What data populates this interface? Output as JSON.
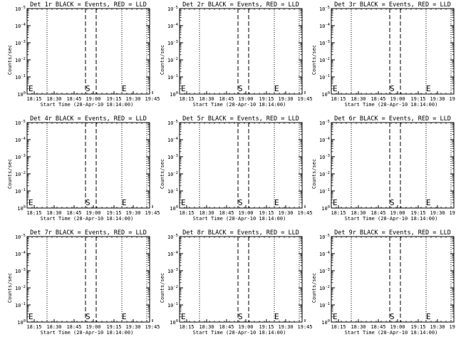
{
  "figure": {
    "background": "#ffffff",
    "foreground": "#000000"
  },
  "chart_data": [
    {
      "type": "line",
      "title": "Det 1r BLACK = Events, RED = LLD",
      "xlabel": "Start Time (28-Apr-10 18:14:00)",
      "ylabel": "Counts/sec",
      "x_ticks": [
        "18:15",
        "18:30",
        "18:45",
        "19:00",
        "19:15",
        "19:30",
        "19:45"
      ],
      "y_ticks": [
        "10^0",
        "10^-1",
        "10^-2",
        "10^-3",
        "10^-4",
        "10^-5"
      ],
      "series": [],
      "markers": [
        "E",
        "S",
        "E"
      ],
      "dashed_lines": 2,
      "dotted_lines": 2,
      "series_colors": {
        "events": "#000000",
        "lld": "#ff0000"
      }
    },
    {
      "type": "line",
      "title": "Det 2r BLACK = Events, RED = LLD",
      "xlabel": "Start Time (28-Apr-10 18:14:00)",
      "ylabel": "Counts/sec",
      "x_ticks": [
        "18:15",
        "18:30",
        "18:45",
        "19:00",
        "19:15",
        "19:30",
        "19:45"
      ],
      "y_ticks": [
        "10^0",
        "10^-1",
        "10^-2",
        "10^-3",
        "10^-4",
        "10^-5"
      ],
      "series": [],
      "markers": [
        "E",
        "S",
        "E"
      ],
      "dashed_lines": 2,
      "dotted_lines": 2,
      "series_colors": {
        "events": "#000000",
        "lld": "#ff0000"
      }
    },
    {
      "type": "line",
      "title": "Det 3r BLACK = Events, RED = LLD",
      "xlabel": "Start Time (28-Apr-10 18:14:00)",
      "ylabel": "Counts/sec",
      "x_ticks": [
        "18:15",
        "18:30",
        "18:45",
        "19:00",
        "19:15",
        "19:30",
        "19:45"
      ],
      "y_ticks": [
        "10^0",
        "10^-1",
        "10^-2",
        "10^-3",
        "10^-4",
        "10^-5"
      ],
      "series": [],
      "markers": [
        "E",
        "S",
        "E"
      ],
      "dashed_lines": 2,
      "dotted_lines": 2,
      "series_colors": {
        "events": "#000000",
        "lld": "#ff0000"
      }
    },
    {
      "type": "line",
      "title": "Det 4r BLACK = Events, RED = LLD",
      "xlabel": "Start Time (28-Apr-10 18:14:00)",
      "ylabel": "Counts/sec",
      "x_ticks": [
        "18:15",
        "18:30",
        "18:45",
        "19:00",
        "19:15",
        "19:30",
        "19:45"
      ],
      "y_ticks": [
        "10^0",
        "10^-1",
        "10^-2",
        "10^-3",
        "10^-4",
        "10^-5"
      ],
      "series": [],
      "markers": [
        "E",
        "S",
        "E"
      ],
      "dashed_lines": 2,
      "dotted_lines": 2,
      "series_colors": {
        "events": "#000000",
        "lld": "#ff0000"
      }
    },
    {
      "type": "line",
      "title": "Det 5r BLACK = Events, RED = LLD",
      "xlabel": "Start Time (28-Apr-10 18:14:00)",
      "ylabel": "Counts/sec",
      "x_ticks": [
        "18:15",
        "18:30",
        "18:45",
        "19:00",
        "19:15",
        "19:30",
        "19:45"
      ],
      "y_ticks": [
        "10^0",
        "10^-1",
        "10^-2",
        "10^-3",
        "10^-4",
        "10^-5"
      ],
      "series": [],
      "markers": [
        "E",
        "S",
        "E"
      ],
      "dashed_lines": 2,
      "dotted_lines": 2,
      "series_colors": {
        "events": "#000000",
        "lld": "#ff0000"
      }
    },
    {
      "type": "line",
      "title": "Det 6r BLACK = Events, RED = LLD",
      "xlabel": "Start Time (28-Apr-10 18:14:00)",
      "ylabel": "Counts/sec",
      "x_ticks": [
        "18:15",
        "18:30",
        "18:45",
        "19:00",
        "19:15",
        "19:30",
        "19:45"
      ],
      "y_ticks": [
        "10^0",
        "10^-1",
        "10^-2",
        "10^-3",
        "10^-4",
        "10^-5"
      ],
      "series": [],
      "markers": [
        "E",
        "S",
        "E"
      ],
      "dashed_lines": 2,
      "dotted_lines": 2,
      "series_colors": {
        "events": "#000000",
        "lld": "#ff0000"
      }
    },
    {
      "type": "line",
      "title": "Det 7r BLACK = Events, RED = LLD",
      "xlabel": "Start Time (28-Apr-10 18:14:00)",
      "ylabel": "Counts/sec",
      "x_ticks": [
        "18:15",
        "18:30",
        "18:45",
        "19:00",
        "19:15",
        "19:30",
        "19:45"
      ],
      "y_ticks": [
        "10^0",
        "10^-1",
        "10^-2",
        "10^-3",
        "10^-4",
        "10^-5"
      ],
      "series": [],
      "markers": [
        "E",
        "S",
        "E"
      ],
      "dashed_lines": 2,
      "dotted_lines": 2,
      "series_colors": {
        "events": "#000000",
        "lld": "#ff0000"
      }
    },
    {
      "type": "line",
      "title": "Det 8r BLACK = Events, RED = LLD",
      "xlabel": "Start Time (28-Apr-10 18:14:00)",
      "ylabel": "Counts/sec",
      "x_ticks": [
        "18:15",
        "18:30",
        "18:45",
        "19:00",
        "19:15",
        "19:30",
        "19:45"
      ],
      "y_ticks": [
        "10^0",
        "10^-1",
        "10^-2",
        "10^-3",
        "10^-4",
        "10^-5"
      ],
      "series": [],
      "markers": [
        "E",
        "S",
        "E"
      ],
      "dashed_lines": 2,
      "dotted_lines": 2,
      "series_colors": {
        "events": "#000000",
        "lld": "#ff0000"
      }
    },
    {
      "type": "line",
      "title": "Det 9r BLACK = Events, RED = LLD",
      "xlabel": "Start Time (28-Apr-10 18:14:00)",
      "ylabel": "Counts/sec",
      "x_ticks": [
        "18:15",
        "18:30",
        "18:45",
        "19:00",
        "19:15",
        "19:30",
        "19:45"
      ],
      "y_ticks": [
        "10^0",
        "10^-1",
        "10^-2",
        "10^-3",
        "10^-4",
        "10^-5"
      ],
      "series": [],
      "markers": [
        "E",
        "S",
        "E"
      ],
      "dashed_lines": 2,
      "dotted_lines": 2,
      "series_colors": {
        "events": "#000000",
        "lld": "#ff0000"
      }
    }
  ]
}
